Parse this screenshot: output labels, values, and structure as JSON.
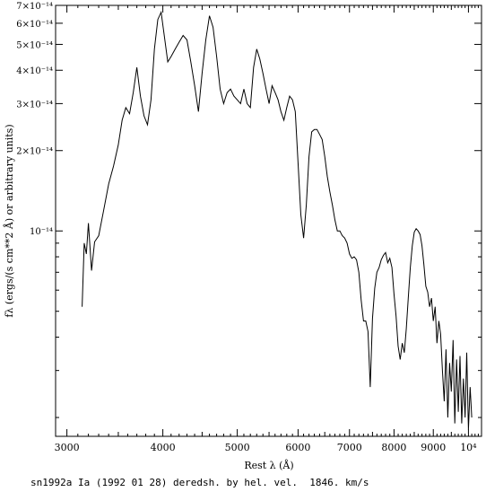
{
  "chart_data": {
    "type": "line",
    "title": "",
    "xlabel": "Rest λ (Å)",
    "ylabel": "fλ (ergs/(s cm**2 Å) or arbitrary units)",
    "caption": "sn1992a Ia (1992 01 28) deredsh. by hel. vel.  1846. km/s",
    "x_scale": "log",
    "y_scale": "log",
    "xlim": [
      2900,
      10400
    ],
    "ylim": [
      1.7e-15,
      7e-14
    ],
    "x_ticks": [
      {
        "value": 3000,
        "label": "3000"
      },
      {
        "value": 4000,
        "label": "4000"
      },
      {
        "value": 5000,
        "label": "5000"
      },
      {
        "value": 6000,
        "label": "6000"
      },
      {
        "value": 7000,
        "label": "7000"
      },
      {
        "value": 8000,
        "label": "8000"
      },
      {
        "value": 9000,
        "label": "9000"
      },
      {
        "value": 10000,
        "label": "10⁴"
      }
    ],
    "y_ticks": [
      {
        "value": 7e-14,
        "label": "7×10⁻¹⁴"
      },
      {
        "value": 6e-14,
        "label": "6×10⁻¹⁴"
      },
      {
        "value": 5e-14,
        "label": "5×10⁻¹⁴"
      },
      {
        "value": 4e-14,
        "label": "4×10⁻¹⁴"
      },
      {
        "value": 3e-14,
        "label": "3×10⁻¹⁴"
      },
      {
        "value": 2e-14,
        "label": "2×10⁻¹⁴"
      },
      {
        "value": 1e-14,
        "label": "10⁻¹⁴"
      }
    ],
    "series": [
      {
        "color": "#000000",
        "x": [
          3140,
          3160,
          3180,
          3200,
          3230,
          3260,
          3300,
          3350,
          3400,
          3450,
          3500,
          3540,
          3580,
          3620,
          3660,
          3700,
          3740,
          3780,
          3820,
          3860,
          3900,
          3940,
          3980,
          4020,
          4060,
          4100,
          4150,
          4200,
          4250,
          4300,
          4350,
          4400,
          4450,
          4500,
          4550,
          4600,
          4650,
          4700,
          4750,
          4800,
          4850,
          4900,
          4950,
          5000,
          5050,
          5100,
          5150,
          5200,
          5250,
          5300,
          5350,
          5400,
          5450,
          5500,
          5550,
          5600,
          5650,
          5700,
          5750,
          5800,
          5850,
          5900,
          5950,
          6000,
          6050,
          6100,
          6150,
          6200,
          6250,
          6300,
          6350,
          6400,
          6450,
          6500,
          6550,
          6600,
          6650,
          6700,
          6750,
          6800,
          6850,
          6900,
          6950,
          7000,
          7050,
          7100,
          7150,
          7200,
          7250,
          7300,
          7350,
          7400,
          7450,
          7500,
          7550,
          7600,
          7650,
          7700,
          7750,
          7800,
          7850,
          7900,
          7950,
          8000,
          8050,
          8100,
          8150,
          8200,
          8250,
          8300,
          8350,
          8400,
          8450,
          8500,
          8550,
          8600,
          8650,
          8700,
          8750,
          8800,
          8850,
          8900,
          8950,
          9000,
          9050,
          9100,
          9150,
          9200,
          9250,
          9300,
          9350,
          9400,
          9450,
          9500,
          9550,
          9600,
          9650,
          9700,
          9750,
          9800,
          9850,
          9900,
          9950,
          10000,
          10050,
          10100
        ],
        "y": [
          5.2e-15,
          9e-15,
          8.2e-15,
          1.07e-14,
          7.1e-15,
          9.1e-15,
          9.6e-15,
          1.2e-14,
          1.5e-14,
          1.75e-14,
          2.1e-14,
          2.6e-14,
          2.9e-14,
          2.75e-14,
          3.3e-14,
          4.1e-14,
          3.2e-14,
          2.7e-14,
          2.5e-14,
          3.1e-14,
          4.8e-14,
          6.2e-14,
          6.6e-14,
          5.3e-14,
          4.3e-14,
          4.5e-14,
          4.8e-14,
          5.1e-14,
          5.4e-14,
          5.2e-14,
          4.3e-14,
          3.5e-14,
          2.8e-14,
          3.9e-14,
          5.2e-14,
          6.4e-14,
          5.8e-14,
          4.5e-14,
          3.4e-14,
          3e-14,
          3.3e-14,
          3.4e-14,
          3.2e-14,
          3.1e-14,
          3e-14,
          3.4e-14,
          3e-14,
          2.9e-14,
          4.1e-14,
          4.8e-14,
          4.4e-14,
          3.9e-14,
          3.4e-14,
          3e-14,
          3.5e-14,
          3.3e-14,
          3.1e-14,
          2.8e-14,
          2.6e-14,
          2.9e-14,
          3.2e-14,
          3.1e-14,
          2.8e-14,
          1.8e-14,
          1.15e-14,
          9.4e-15,
          1.25e-14,
          1.9e-14,
          2.35e-14,
          2.4e-14,
          2.4e-14,
          2.3e-14,
          2.2e-14,
          1.9e-14,
          1.6e-14,
          1.4e-14,
          1.25e-14,
          1.1e-14,
          1e-14,
          1e-14,
          9.6e-15,
          9.4e-15,
          9e-15,
          8.2e-15,
          7.9e-15,
          8e-15,
          7.8e-15,
          7e-15,
          5.5e-15,
          4.6e-15,
          4.6e-15,
          4.2e-15,
          2.6e-15,
          4.7e-15,
          6.1e-15,
          7e-15,
          7.3e-15,
          7.8e-15,
          8.1e-15,
          8.3e-15,
          7.6e-15,
          7.9e-15,
          7.3e-15,
          5.8e-15,
          4.8e-15,
          3.7e-15,
          3.3e-15,
          3.8e-15,
          3.5e-15,
          4.3e-15,
          5.6e-15,
          7.3e-15,
          8.8e-15,
          9.9e-15,
          1.02e-14,
          1e-14,
          9.7e-15,
          8.8e-15,
          7.5e-15,
          6.2e-15,
          5.9e-15,
          5.2e-15,
          5.6e-15,
          4.6e-15,
          5.2e-15,
          3.8e-15,
          4.6e-15,
          4.1e-15,
          3e-15,
          2.3e-15,
          3.6e-15,
          2e-15,
          3.2e-15,
          2.5e-15,
          3.9e-15,
          1.9e-15,
          3.3e-15,
          2.1e-15,
          3.4e-15,
          1.9e-15,
          2.8e-15,
          2e-15,
          3.5e-15,
          1.8e-15,
          2.6e-15,
          2e-15
        ]
      }
    ]
  }
}
